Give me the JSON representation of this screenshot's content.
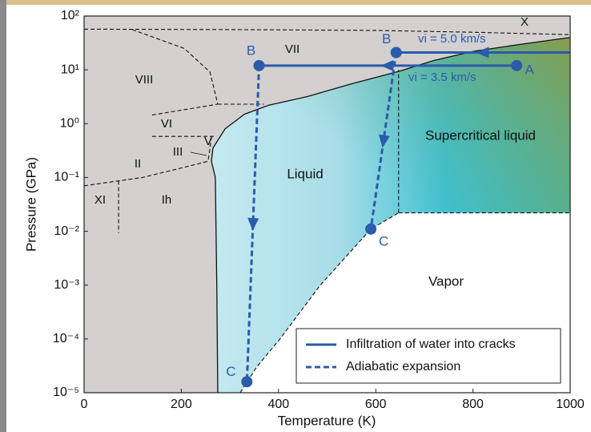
{
  "chart_data": {
    "type": "phase-diagram",
    "xlabel": "Temperature (K)",
    "ylabel": "Pressure (GPa)",
    "xlim": [
      0,
      1000
    ],
    "xticks": [
      0,
      200,
      400,
      600,
      800,
      1000
    ],
    "log_y": true,
    "ylim": [
      1e-05,
      100
    ],
    "yticks": [
      {
        "value": 1e-05,
        "label": "10⁻⁵"
      },
      {
        "value": 0.0001,
        "label": "10⁻⁴"
      },
      {
        "value": 0.001,
        "label": "10⁻³"
      },
      {
        "value": 0.01,
        "label": "10⁻²"
      },
      {
        "value": 0.1,
        "label": "10⁻¹"
      },
      {
        "value": 1,
        "label": "10⁰"
      },
      {
        "value": 10,
        "label": "10¹"
      },
      {
        "value": 100,
        "label": "10²"
      }
    ],
    "regions": [
      "VIII",
      "VII",
      "X",
      "VI",
      "V",
      "III",
      "II",
      "XI",
      "Ih",
      "Liquid",
      "Supercritical liquid",
      "Vapor"
    ],
    "boundaries": [
      {
        "style": "solid",
        "x": [
          275,
          273,
          270,
          262,
          265,
          290,
          330,
          380,
          460,
          550,
          650,
          720,
          800,
          900,
          1000
        ],
        "y": [
          1e-05,
          0.001,
          0.1,
          0.2,
          0.35,
          0.8,
          1.5,
          2.2,
          3.2,
          5.5,
          9.5,
          15,
          22,
          30,
          40
        ]
      },
      {
        "style": "dashed",
        "x": [
          321,
          355,
          403,
          486,
          590,
          647
        ],
        "y": [
          1e-05,
          3e-05,
          0.0001,
          0.001,
          0.011,
          0.022
        ]
      },
      {
        "style": "dashed",
        "x": [
          647,
          647
        ],
        "y": [
          0.022,
          10
        ]
      },
      {
        "style": "dashed",
        "x": [
          647,
          1000
        ],
        "y": [
          0.022,
          0.022
        ]
      },
      {
        "style": "dashed",
        "x": [
          0,
          300,
          600,
          800,
          1000
        ],
        "y": [
          57,
          56,
          54,
          50,
          45
        ]
      },
      {
        "style": "dashed",
        "x": [
          99,
          206,
          259,
          275
        ],
        "y": [
          56,
          25,
          9.1,
          2.3
        ]
      },
      {
        "style": "dashed",
        "x": [
          275,
          370
        ],
        "y": [
          2.3,
          2.3
        ]
      },
      {
        "style": "dashed",
        "x": [
          140,
          275
        ],
        "y": [
          1.45,
          2.3
        ]
      },
      {
        "style": "dashed",
        "x": [
          140,
          272
        ],
        "y": [
          0.58,
          0.58
        ]
      },
      {
        "style": "dashed",
        "x": [
          262,
          258,
          255
        ],
        "y": [
          0.58,
          0.3,
          0.2
        ]
      },
      {
        "style": "dashed",
        "x": [
          0,
          120,
          200,
          255
        ],
        "y": [
          0.07,
          0.1,
          0.15,
          0.2
        ]
      },
      {
        "style": "dashed",
        "x": [
          71,
          71
        ],
        "y": [
          0.087,
          0.0093
        ]
      }
    ],
    "color": "#2b5bab",
    "legend": [
      {
        "name": "Infiltration of water into cracks",
        "style": "solid"
      },
      {
        "name": "Adiabatic expansion",
        "style": "dashed"
      }
    ],
    "paths": [
      {
        "label": "vi = 3.5 km/s",
        "x": [
          890,
          360,
          335
        ],
        "y": [
          12,
          12,
          1.6e-05
        ],
        "labels": [
          "A",
          "B",
          "C"
        ]
      },
      {
        "label": "vi = 5.0 km/s",
        "x": [
          1000,
          642,
          590
        ],
        "y": [
          21,
          21,
          0.011
        ],
        "labels": [
          null,
          "B",
          "C"
        ]
      }
    ]
  }
}
